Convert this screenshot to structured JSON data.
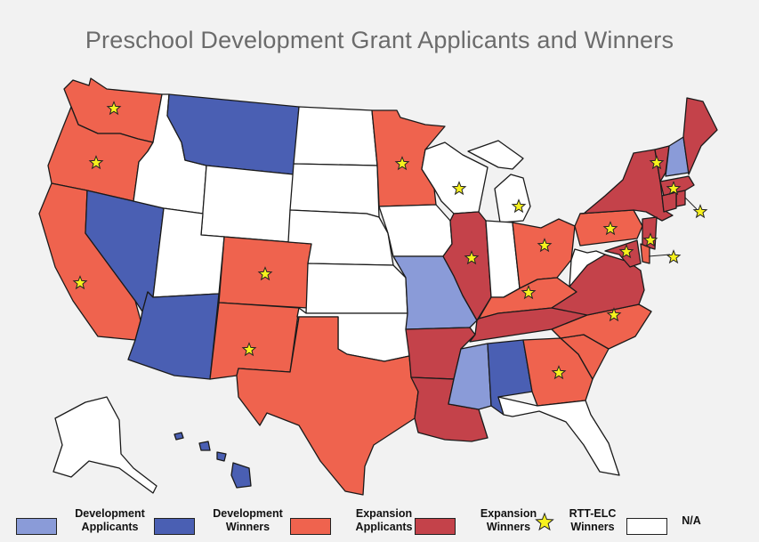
{
  "title": "Preschool Development Grant Applicants and Winners",
  "categories": {
    "dev_applicant": {
      "color": "#8a9bd8"
    },
    "dev_winner": {
      "color": "#4a5fb3"
    },
    "exp_applicant": {
      "color": "#ef634e"
    },
    "exp_winner": {
      "color": "#c4424a"
    },
    "na": {
      "color": "#ffffff"
    }
  },
  "star_color": "#f7f21d",
  "legend": [
    {
      "line1": "Development",
      "line2": "Applicants",
      "color": "#8a9bd8",
      "kind": "swatch"
    },
    {
      "line1": "Development",
      "line2": "Winners",
      "color": "#4a5fb3",
      "kind": "swatch"
    },
    {
      "line1": "Expansion",
      "line2": "Applicants",
      "color": "#ef634e",
      "kind": "swatch"
    },
    {
      "line1": "Expansion",
      "line2": "Winners",
      "color": "#c4424a",
      "kind": "swatch"
    },
    {
      "line1": "RTT-ELC",
      "line2": "Winners",
      "color": "#f7f21d",
      "kind": "star"
    },
    {
      "line1": "N/A",
      "line2": "",
      "color": "#ffffff",
      "kind": "swatch"
    }
  ],
  "states": [
    {
      "name": "WA",
      "cat": "exp_applicant",
      "star": true
    },
    {
      "name": "OR",
      "cat": "exp_applicant",
      "star": true
    },
    {
      "name": "CA",
      "cat": "exp_applicant",
      "star": true
    },
    {
      "name": "NV",
      "cat": "dev_winner",
      "star": false
    },
    {
      "name": "ID",
      "cat": "na",
      "star": false
    },
    {
      "name": "MT",
      "cat": "dev_winner",
      "star": false
    },
    {
      "name": "WY",
      "cat": "na",
      "star": false
    },
    {
      "name": "UT",
      "cat": "na",
      "star": false
    },
    {
      "name": "AZ",
      "cat": "dev_winner",
      "star": false
    },
    {
      "name": "CO",
      "cat": "exp_applicant",
      "star": true
    },
    {
      "name": "NM",
      "cat": "exp_applicant",
      "star": true
    },
    {
      "name": "ND",
      "cat": "na",
      "star": false
    },
    {
      "name": "SD",
      "cat": "na",
      "star": false
    },
    {
      "name": "NE",
      "cat": "na",
      "star": false
    },
    {
      "name": "KS",
      "cat": "na",
      "star": false
    },
    {
      "name": "OK",
      "cat": "na",
      "star": false
    },
    {
      "name": "TX",
      "cat": "exp_applicant",
      "star": false
    },
    {
      "name": "MN",
      "cat": "exp_applicant",
      "star": true
    },
    {
      "name": "IA",
      "cat": "na",
      "star": false
    },
    {
      "name": "MO",
      "cat": "dev_applicant",
      "star": false
    },
    {
      "name": "AR",
      "cat": "exp_winner",
      "star": false
    },
    {
      "name": "LA",
      "cat": "exp_winner",
      "star": false
    },
    {
      "name": "WI",
      "cat": "na",
      "star": true
    },
    {
      "name": "IL",
      "cat": "exp_winner",
      "star": true
    },
    {
      "name": "MI",
      "cat": "na",
      "star": true
    },
    {
      "name": "IN",
      "cat": "na",
      "star": false
    },
    {
      "name": "OH",
      "cat": "exp_applicant",
      "star": true
    },
    {
      "name": "KY",
      "cat": "exp_applicant",
      "star": true
    },
    {
      "name": "TN",
      "cat": "exp_winner",
      "star": false
    },
    {
      "name": "MS",
      "cat": "dev_applicant",
      "star": false
    },
    {
      "name": "AL",
      "cat": "dev_winner",
      "star": false
    },
    {
      "name": "GA",
      "cat": "exp_applicant",
      "star": true
    },
    {
      "name": "FL",
      "cat": "na",
      "star": false
    },
    {
      "name": "SC",
      "cat": "exp_applicant",
      "star": false
    },
    {
      "name": "NC",
      "cat": "exp_applicant",
      "star": true
    },
    {
      "name": "VA",
      "cat": "exp_winner",
      "star": false
    },
    {
      "name": "WV",
      "cat": "na",
      "star": false
    },
    {
      "name": "PA",
      "cat": "exp_applicant",
      "star": true
    },
    {
      "name": "NY",
      "cat": "exp_winner",
      "star": false
    },
    {
      "name": "VT",
      "cat": "exp_winner",
      "star": true
    },
    {
      "name": "NH",
      "cat": "dev_applicant",
      "star": false
    },
    {
      "name": "ME",
      "cat": "exp_winner",
      "star": false
    },
    {
      "name": "MA",
      "cat": "exp_winner",
      "star": true
    },
    {
      "name": "RI",
      "cat": "exp_winner",
      "star": true
    },
    {
      "name": "CT",
      "cat": "exp_winner",
      "star": false
    },
    {
      "name": "NJ",
      "cat": "exp_winner",
      "star": true
    },
    {
      "name": "DE",
      "cat": "exp_applicant",
      "star": true
    },
    {
      "name": "MD",
      "cat": "exp_winner",
      "star": true
    },
    {
      "name": "AK",
      "cat": "na",
      "star": false
    },
    {
      "name": "HI",
      "cat": "dev_winner",
      "star": false
    }
  ]
}
